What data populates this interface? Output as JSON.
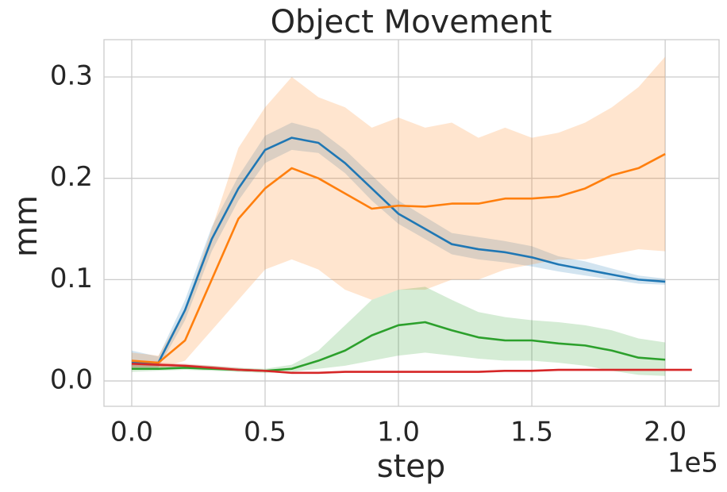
{
  "chart_data": {
    "type": "line",
    "title": "Object Movement",
    "x_label": "step",
    "y_label": "mm",
    "x_offset_label": "1e5",
    "x": [
      0,
      10000,
      20000,
      30000,
      40000,
      50000,
      60000,
      70000,
      80000,
      90000,
      100000,
      110000,
      120000,
      130000,
      140000,
      150000,
      160000,
      170000,
      180000,
      190000,
      200000,
      210000
    ],
    "series": [
      {
        "color": "#1f77b4",
        "values": [
          0.018,
          0.018,
          0.07,
          0.14,
          0.19,
          0.228,
          0.24,
          0.235,
          0.215,
          0.19,
          0.165,
          0.15,
          0.135,
          0.13,
          0.127,
          0.122,
          0.115,
          0.11,
          0.105,
          0.1,
          0.098,
          null
        ],
        "lower": [
          0.012,
          0.013,
          0.06,
          0.128,
          0.178,
          0.215,
          0.228,
          0.225,
          0.205,
          0.178,
          0.155,
          0.14,
          0.125,
          0.12,
          0.117,
          0.113,
          0.108,
          0.104,
          0.1,
          0.096,
          0.095,
          null
        ],
        "upper": [
          0.03,
          0.024,
          0.08,
          0.152,
          0.202,
          0.242,
          0.255,
          0.248,
          0.228,
          0.203,
          0.178,
          0.162,
          0.146,
          0.142,
          0.138,
          0.133,
          0.123,
          0.118,
          0.111,
          0.104,
          0.101,
          null
        ]
      },
      {
        "color": "#ff7f0e",
        "values": [
          0.02,
          0.018,
          0.04,
          0.1,
          0.16,
          0.19,
          0.21,
          0.2,
          0.185,
          0.17,
          0.173,
          0.172,
          0.175,
          0.175,
          0.18,
          0.18,
          0.182,
          0.19,
          0.203,
          0.21,
          0.224,
          null
        ],
        "lower": [
          0.012,
          0.012,
          0.02,
          0.05,
          0.08,
          0.11,
          0.12,
          0.11,
          0.09,
          0.08,
          0.09,
          0.09,
          0.1,
          0.1,
          0.11,
          0.115,
          0.12,
          0.12,
          0.125,
          0.13,
          0.128,
          null
        ],
        "upper": [
          0.028,
          0.025,
          0.07,
          0.15,
          0.23,
          0.27,
          0.3,
          0.28,
          0.27,
          0.25,
          0.26,
          0.25,
          0.255,
          0.24,
          0.25,
          0.24,
          0.245,
          0.255,
          0.27,
          0.29,
          0.32,
          null
        ]
      },
      {
        "color": "#2ca02c",
        "values": [
          0.012,
          0.012,
          0.013,
          0.012,
          0.011,
          0.01,
          0.012,
          0.02,
          0.03,
          0.045,
          0.055,
          0.058,
          0.05,
          0.043,
          0.04,
          0.04,
          0.037,
          0.035,
          0.03,
          0.023,
          0.021,
          null
        ],
        "lower": [
          0.009,
          0.01,
          0.011,
          0.01,
          0.009,
          0.008,
          0.009,
          0.012,
          0.015,
          0.02,
          0.025,
          0.028,
          0.025,
          0.022,
          0.02,
          0.02,
          0.018,
          0.015,
          0.01,
          0.006,
          0.005,
          null
        ],
        "upper": [
          0.016,
          0.015,
          0.016,
          0.015,
          0.013,
          0.012,
          0.016,
          0.03,
          0.055,
          0.08,
          0.09,
          0.093,
          0.08,
          0.068,
          0.063,
          0.06,
          0.058,
          0.055,
          0.05,
          0.042,
          0.038,
          null
        ]
      },
      {
        "color": "#d62728",
        "values": [
          0.017,
          0.016,
          0.015,
          0.013,
          0.011,
          0.01,
          0.008,
          0.008,
          0.009,
          0.009,
          0.009,
          0.009,
          0.009,
          0.009,
          0.01,
          0.01,
          0.011,
          0.011,
          0.011,
          0.011,
          0.011,
          0.011
        ],
        "lower": [
          0.014,
          0.014,
          0.013,
          0.012,
          0.01,
          0.009,
          0.007,
          0.007,
          0.008,
          0.008,
          0.008,
          0.008,
          0.008,
          0.008,
          0.009,
          0.009,
          0.01,
          0.01,
          0.01,
          0.01,
          0.01,
          0.01
        ],
        "upper": [
          0.02,
          0.018,
          0.017,
          0.015,
          0.013,
          0.011,
          0.009,
          0.009,
          0.01,
          0.01,
          0.01,
          0.01,
          0.01,
          0.01,
          0.011,
          0.011,
          0.012,
          0.012,
          0.012,
          0.012,
          0.012,
          0.012
        ]
      }
    ],
    "xlim": [
      -10400,
      220200
    ],
    "ylim": [
      -0.025,
      0.3368
    ],
    "xticks": [
      {
        "value": 0,
        "label": "0.0"
      },
      {
        "value": 50000,
        "label": "0.5"
      },
      {
        "value": 100000,
        "label": "1.0"
      },
      {
        "value": 150000,
        "label": "1.5"
      },
      {
        "value": 200000,
        "label": "2.0"
      }
    ],
    "yticks": [
      {
        "value": 0,
        "label": "0.0"
      },
      0.1,
      0.2,
      0.3
    ],
    "grid": true
  }
}
